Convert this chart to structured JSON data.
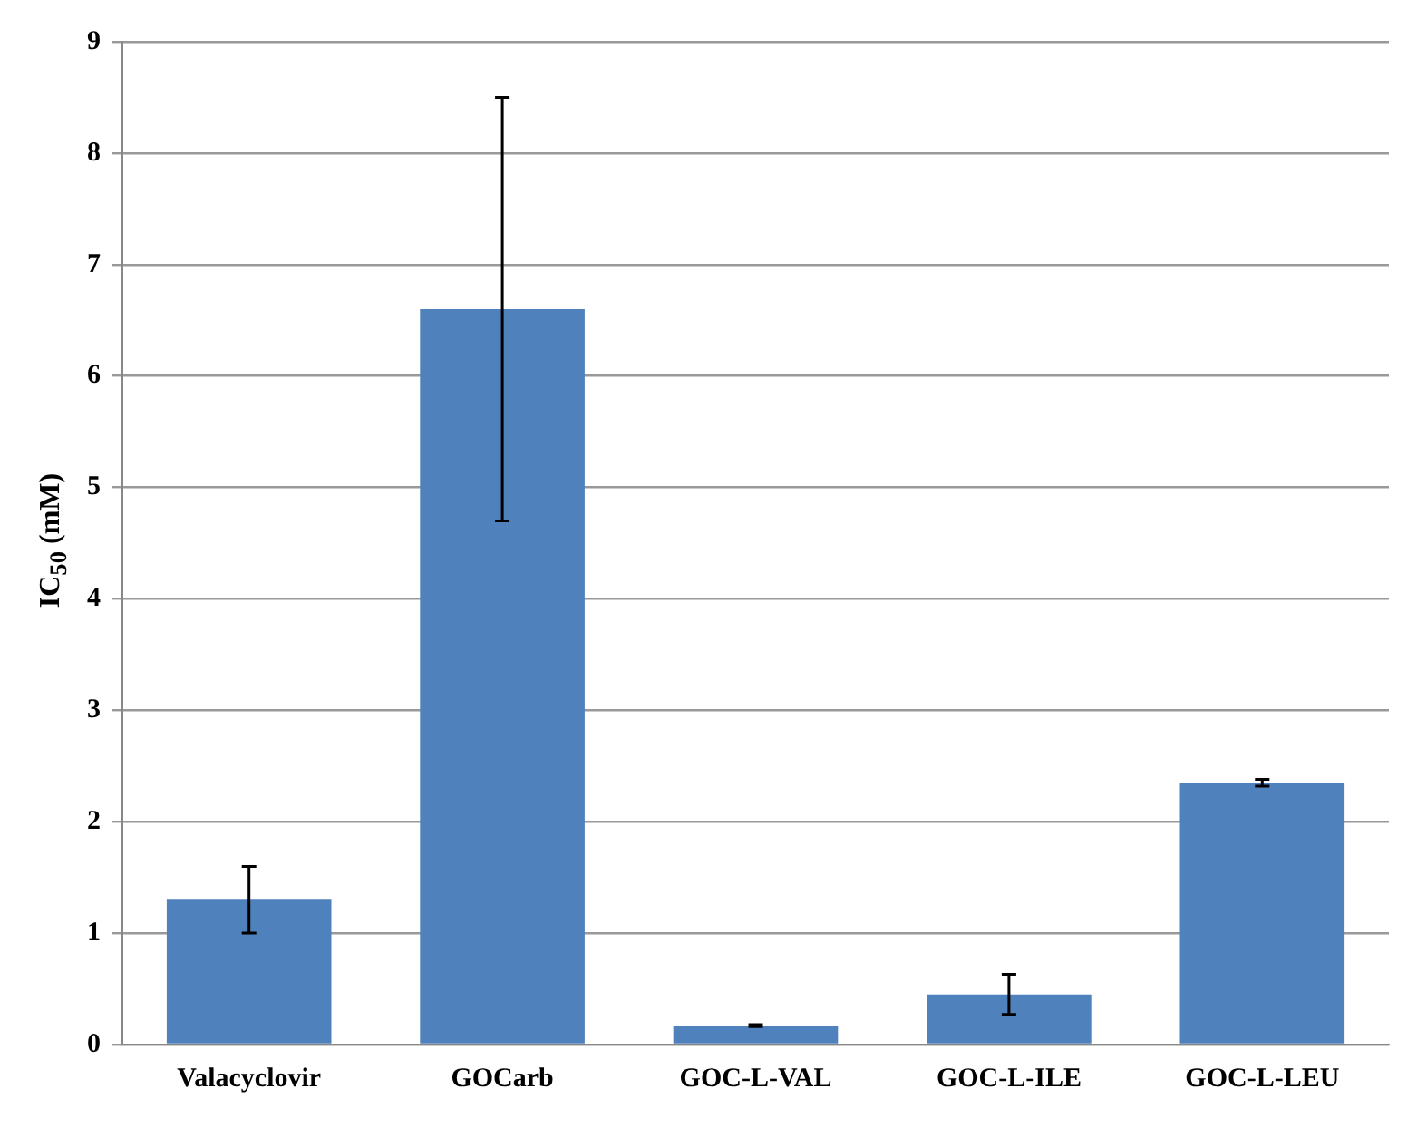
{
  "chart_data": {
    "type": "bar",
    "ylabel": "IC$_{50}$ (mM)",
    "categories": [
      "Valacyclovir",
      "GOCarb",
      "GOC-L-VAL",
      "GOC-L-ILE",
      "GOC-L-LEU"
    ],
    "values": [
      1.3,
      6.6,
      0.17,
      0.45,
      2.35
    ],
    "errors": [
      0.3,
      1.9,
      0.01,
      0.18,
      0.03
    ],
    "color": "#4f81bd",
    "ylim": [
      0,
      9
    ],
    "yticks": [
      0,
      1,
      2,
      3,
      4,
      5,
      6,
      7,
      8,
      9
    ],
    "grid": "y"
  }
}
